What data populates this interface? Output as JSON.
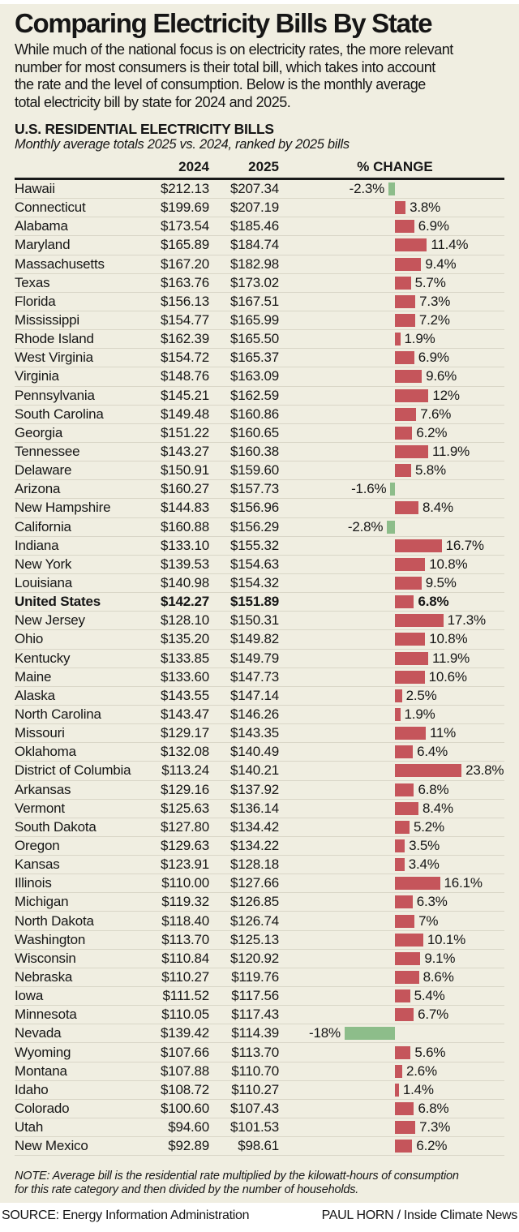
{
  "title": "Comparing Electricity Bills By State",
  "intro_lines": [
    "While much of the national focus is on electricity rates, the more relevant",
    "number for most consumers is their total bill, which takes into account",
    "the rate and the level of consumption. Below is the monthly average",
    "total electricity bill by state for 2024 and 2025."
  ],
  "chart_data": {
    "type": "bar",
    "title": "U.S. RESIDENTIAL ELECTRICITY BILLS",
    "subtitle": "Monthly average totals 2025 vs. 2024, ranked by 2025 bills",
    "columns": [
      "2024",
      "2025",
      "% CHANGE"
    ],
    "unit": "USD per month",
    "positive_color": "#c5555b",
    "negative_color": "#8dbd8a",
    "change_axis_min": -18,
    "change_axis_max": 23.8,
    "rows": [
      {
        "state": "Hawaii",
        "bill_2024": "$212.13",
        "bill_2025": "$207.34",
        "change_label": "-2.3%",
        "change_pct": -2.3
      },
      {
        "state": "Connecticut",
        "bill_2024": "$199.69",
        "bill_2025": "$207.19",
        "change_label": "3.8%",
        "change_pct": 3.8
      },
      {
        "state": "Alabama",
        "bill_2024": "$173.54",
        "bill_2025": "$185.46",
        "change_label": "6.9%",
        "change_pct": 6.9
      },
      {
        "state": "Maryland",
        "bill_2024": "$165.89",
        "bill_2025": "$184.74",
        "change_label": "11.4%",
        "change_pct": 11.4
      },
      {
        "state": "Massachusetts",
        "bill_2024": "$167.20",
        "bill_2025": "$182.98",
        "change_label": "9.4%",
        "change_pct": 9.4
      },
      {
        "state": "Texas",
        "bill_2024": "$163.76",
        "bill_2025": "$173.02",
        "change_label": "5.7%",
        "change_pct": 5.7
      },
      {
        "state": "Florida",
        "bill_2024": "$156.13",
        "bill_2025": "$167.51",
        "change_label": "7.3%",
        "change_pct": 7.3
      },
      {
        "state": "Mississippi",
        "bill_2024": "$154.77",
        "bill_2025": "$165.99",
        "change_label": "7.2%",
        "change_pct": 7.2
      },
      {
        "state": "Rhode Island",
        "bill_2024": "$162.39",
        "bill_2025": "$165.50",
        "change_label": "1.9%",
        "change_pct": 1.9
      },
      {
        "state": "West Virginia",
        "bill_2024": "$154.72",
        "bill_2025": "$165.37",
        "change_label": "6.9%",
        "change_pct": 6.9
      },
      {
        "state": "Virginia",
        "bill_2024": "$148.76",
        "bill_2025": "$163.09",
        "change_label": "9.6%",
        "change_pct": 9.6
      },
      {
        "state": "Pennsylvania",
        "bill_2024": "$145.21",
        "bill_2025": "$162.59",
        "change_label": "12%",
        "change_pct": 12
      },
      {
        "state": "South Carolina",
        "bill_2024": "$149.48",
        "bill_2025": "$160.86",
        "change_label": "7.6%",
        "change_pct": 7.6
      },
      {
        "state": "Georgia",
        "bill_2024": "$151.22",
        "bill_2025": "$160.65",
        "change_label": "6.2%",
        "change_pct": 6.2
      },
      {
        "state": "Tennessee",
        "bill_2024": "$143.27",
        "bill_2025": "$160.38",
        "change_label": "11.9%",
        "change_pct": 11.9
      },
      {
        "state": "Delaware",
        "bill_2024": "$150.91",
        "bill_2025": "$159.60",
        "change_label": "5.8%",
        "change_pct": 5.8
      },
      {
        "state": "Arizona",
        "bill_2024": "$160.27",
        "bill_2025": "$157.73",
        "change_label": "-1.6%",
        "change_pct": -1.6
      },
      {
        "state": "New Hampshire",
        "bill_2024": "$144.83",
        "bill_2025": "$156.96",
        "change_label": "8.4%",
        "change_pct": 8.4
      },
      {
        "state": "California",
        "bill_2024": "$160.88",
        "bill_2025": "$156.29",
        "change_label": "-2.8%",
        "change_pct": -2.8
      },
      {
        "state": "Indiana",
        "bill_2024": "$133.10",
        "bill_2025": "$155.32",
        "change_label": "16.7%",
        "change_pct": 16.7
      },
      {
        "state": "New York",
        "bill_2024": "$139.53",
        "bill_2025": "$154.63",
        "change_label": "10.8%",
        "change_pct": 10.8
      },
      {
        "state": "Louisiana",
        "bill_2024": "$140.98",
        "bill_2025": "$154.32",
        "change_label": "9.5%",
        "change_pct": 9.5
      },
      {
        "state": "United States",
        "bill_2024": "$142.27",
        "bill_2025": "$151.89",
        "change_label": "6.8%",
        "change_pct": 6.8,
        "bold": true
      },
      {
        "state": "New Jersey",
        "bill_2024": "$128.10",
        "bill_2025": "$150.31",
        "change_label": "17.3%",
        "change_pct": 17.3
      },
      {
        "state": "Ohio",
        "bill_2024": "$135.20",
        "bill_2025": "$149.82",
        "change_label": "10.8%",
        "change_pct": 10.8
      },
      {
        "state": "Kentucky",
        "bill_2024": "$133.85",
        "bill_2025": "$149.79",
        "change_label": "11.9%",
        "change_pct": 11.9
      },
      {
        "state": "Maine",
        "bill_2024": "$133.60",
        "bill_2025": "$147.73",
        "change_label": "10.6%",
        "change_pct": 10.6
      },
      {
        "state": "Alaska",
        "bill_2024": "$143.55",
        "bill_2025": "$147.14",
        "change_label": "2.5%",
        "change_pct": 2.5
      },
      {
        "state": "North Carolina",
        "bill_2024": "$143.47",
        "bill_2025": "$146.26",
        "change_label": "1.9%",
        "change_pct": 1.9
      },
      {
        "state": "Missouri",
        "bill_2024": "$129.17",
        "bill_2025": "$143.35",
        "change_label": "11%",
        "change_pct": 11
      },
      {
        "state": "Oklahoma",
        "bill_2024": "$132.08",
        "bill_2025": "$140.49",
        "change_label": "6.4%",
        "change_pct": 6.4
      },
      {
        "state": "District of Columbia",
        "bill_2024": "$113.24",
        "bill_2025": "$140.21",
        "change_label": "23.8%",
        "change_pct": 23.8
      },
      {
        "state": "Arkansas",
        "bill_2024": "$129.16",
        "bill_2025": "$137.92",
        "change_label": "6.8%",
        "change_pct": 6.8
      },
      {
        "state": "Vermont",
        "bill_2024": "$125.63",
        "bill_2025": "$136.14",
        "change_label": "8.4%",
        "change_pct": 8.4
      },
      {
        "state": "South Dakota",
        "bill_2024": "$127.80",
        "bill_2025": "$134.42",
        "change_label": "5.2%",
        "change_pct": 5.2
      },
      {
        "state": "Oregon",
        "bill_2024": "$129.63",
        "bill_2025": "$134.22",
        "change_label": "3.5%",
        "change_pct": 3.5
      },
      {
        "state": "Kansas",
        "bill_2024": "$123.91",
        "bill_2025": "$128.18",
        "change_label": "3.4%",
        "change_pct": 3.4
      },
      {
        "state": "Illinois",
        "bill_2024": "$110.00",
        "bill_2025": "$127.66",
        "change_label": "16.1%",
        "change_pct": 16.1
      },
      {
        "state": "Michigan",
        "bill_2024": "$119.32",
        "bill_2025": "$126.85",
        "change_label": "6.3%",
        "change_pct": 6.3
      },
      {
        "state": "North Dakota",
        "bill_2024": "$118.40",
        "bill_2025": "$126.74",
        "change_label": "7%",
        "change_pct": 7
      },
      {
        "state": "Washington",
        "bill_2024": "$113.70",
        "bill_2025": "$125.13",
        "change_label": "10.1%",
        "change_pct": 10.1
      },
      {
        "state": "Wisconsin",
        "bill_2024": "$110.84",
        "bill_2025": "$120.92",
        "change_label": "9.1%",
        "change_pct": 9.1
      },
      {
        "state": "Nebraska",
        "bill_2024": "$110.27",
        "bill_2025": "$119.76",
        "change_label": "8.6%",
        "change_pct": 8.6
      },
      {
        "state": "Iowa",
        "bill_2024": "$111.52",
        "bill_2025": "$117.56",
        "change_label": "5.4%",
        "change_pct": 5.4
      },
      {
        "state": "Minnesota",
        "bill_2024": "$110.05",
        "bill_2025": "$117.43",
        "change_label": "6.7%",
        "change_pct": 6.7
      },
      {
        "state": "Nevada",
        "bill_2024": "$139.42",
        "bill_2025": "$114.39",
        "change_label": "-18%",
        "change_pct": -18
      },
      {
        "state": "Wyoming",
        "bill_2024": "$107.66",
        "bill_2025": "$113.70",
        "change_label": "5.6%",
        "change_pct": 5.6
      },
      {
        "state": "Montana",
        "bill_2024": "$107.88",
        "bill_2025": "$110.70",
        "change_label": "2.6%",
        "change_pct": 2.6
      },
      {
        "state": "Idaho",
        "bill_2024": "$108.72",
        "bill_2025": "$110.27",
        "change_label": "1.4%",
        "change_pct": 1.4
      },
      {
        "state": "Colorado",
        "bill_2024": "$100.60",
        "bill_2025": "$107.43",
        "change_label": "6.8%",
        "change_pct": 6.8
      },
      {
        "state": "Utah",
        "bill_2024": "$94.60",
        "bill_2025": "$101.53",
        "change_label": "7.3%",
        "change_pct": 7.3
      },
      {
        "state": "New Mexico",
        "bill_2024": "$92.89",
        "bill_2025": "$98.61",
        "change_label": "6.2%",
        "change_pct": 6.2
      }
    ]
  },
  "note_lines": [
    "NOTE: Average bill is the residential rate multiplied by the kilowatt-hours of consumption",
    "for this rate category and then divided by the number of households."
  ],
  "footer": {
    "source": "SOURCE: Energy Information Administration",
    "credit": "PAUL HORN / Inside Climate News"
  }
}
